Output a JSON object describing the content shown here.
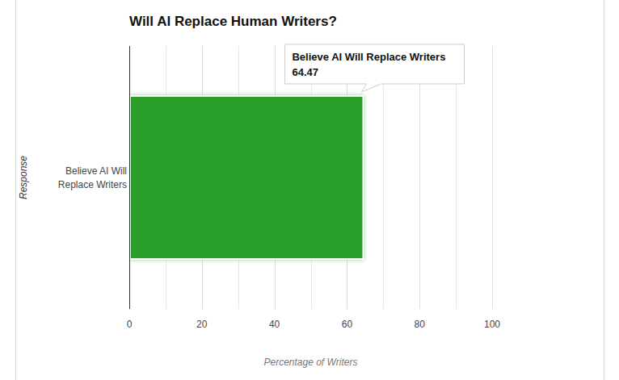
{
  "chart_data": {
    "type": "bar",
    "title": "Will AI Replace Human Writers?",
    "orientation": "horizontal",
    "categories": [
      "Believe AI Will Replace Writers"
    ],
    "values": [
      64.47
    ],
    "color": "#2ca02c",
    "x_label": "Percentage of Writers",
    "y_label": "Response",
    "xlim": [
      0,
      100
    ],
    "xticks": [
      0,
      20,
      40,
      60,
      80,
      100
    ],
    "grid": true,
    "data_labels": true
  }
}
